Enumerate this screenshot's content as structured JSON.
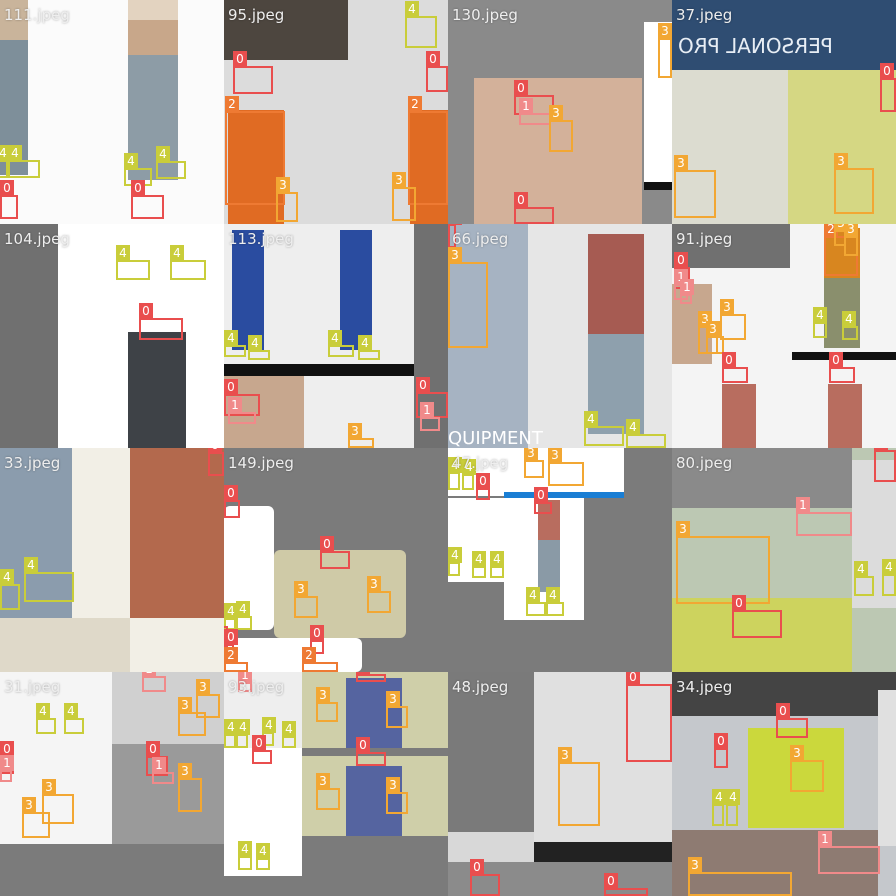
{
  "mosaic": {
    "tiles": [
      {
        "file": "111.jpeg"
      },
      {
        "file": "95.jpeg"
      },
      {
        "file": "130.jpeg"
      },
      {
        "file": "37.jpeg"
      },
      {
        "file": "104.jpeg"
      },
      {
        "file": "113.jpeg"
      },
      {
        "file": "66.jpeg"
      },
      {
        "file": "91.jpeg"
      },
      {
        "file": "33.jpeg"
      },
      {
        "file": "149.jpeg"
      },
      {
        "file": "47.jpeg"
      },
      {
        "file": "80.jpeg"
      },
      {
        "file": "31.jpeg"
      },
      {
        "file": "93.jpeg"
      },
      {
        "file": "48.jpeg"
      },
      {
        "file": "34.jpeg"
      }
    ],
    "texts": {
      "t37_sign": "PERSONAL PRO",
      "t66_sign": "QUIPMENT"
    }
  },
  "labels": {
    "l0": "0",
    "l1": "1",
    "l2": "2",
    "l3": "3",
    "l4": "4"
  }
}
